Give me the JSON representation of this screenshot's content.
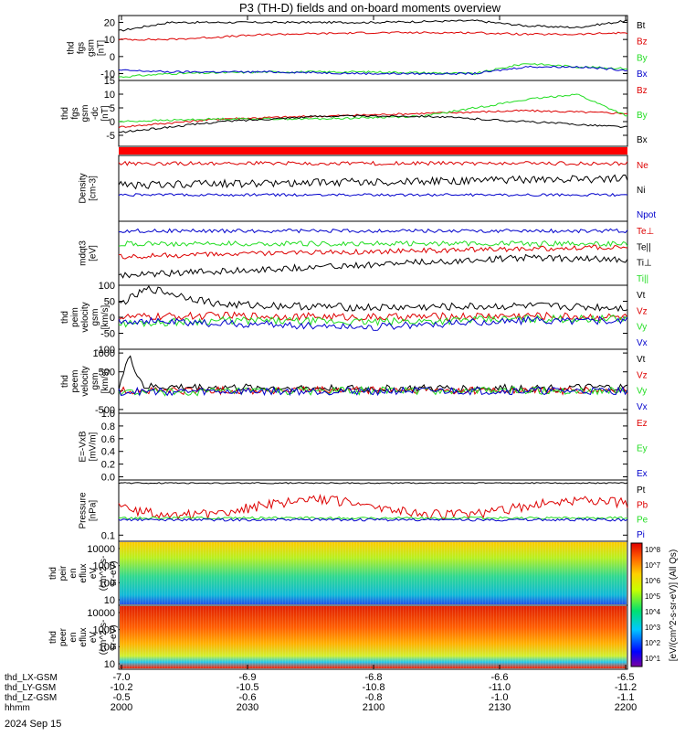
{
  "title": "P3 (TH-D) fields and on-board moments overview",
  "colors": {
    "black": "#000000",
    "red": "#dd0000",
    "green": "#22dd22",
    "blue": "#0000cc"
  },
  "panels": [
    {
      "id": "fgs_gsm",
      "ylabel": [
        "thd",
        "fgs",
        "gsm",
        "[nT]"
      ],
      "ticks": [
        "20",
        "10",
        "0",
        "-10"
      ],
      "tick_values": [
        20,
        10,
        0,
        -10
      ],
      "ylim": [
        -14,
        24
      ],
      "legend": [
        {
          "text": "Bt",
          "color": "black"
        },
        {
          "text": "Bz",
          "color": "red"
        },
        {
          "text": "By",
          "color": "green"
        },
        {
          "text": "Bx",
          "color": "blue"
        }
      ]
    },
    {
      "id": "fgs_gsm_dc",
      "ylabel": [
        "thd",
        "fgs",
        "gsm",
        "-dc",
        "[nT]"
      ],
      "ticks": [
        "15",
        "10",
        "5",
        "0",
        "-5"
      ],
      "tick_values": [
        15,
        10,
        5,
        0,
        -5
      ],
      "ylim": [
        -9,
        15
      ],
      "legend": [
        {
          "text": "Bz",
          "color": "red"
        },
        {
          "text": "By",
          "color": "green"
        },
        {
          "text": "Bx",
          "color": "black"
        }
      ]
    },
    {
      "id": "density",
      "ylabel": [
        "Density",
        "[cm-3]"
      ],
      "ticks": [],
      "tick_values": [],
      "ylim": [
        0,
        1
      ],
      "legend": [
        {
          "text": "Ne",
          "color": "red"
        },
        {
          "text": "Ni",
          "color": "black"
        },
        {
          "text": "Npot",
          "color": "blue"
        }
      ]
    },
    {
      "id": "temperature",
      "ylabel": [
        "mdqt3",
        "[eV]"
      ],
      "ticks": [],
      "tick_values": [],
      "ylim": [
        0,
        1
      ],
      "legend": [
        {
          "text": "Te⊥",
          "color": "red"
        },
        {
          "text": "Te||",
          "color": "black"
        },
        {
          "text": "Ti⊥",
          "color": "black"
        },
        {
          "text": "Ti||",
          "color": "green"
        }
      ]
    },
    {
      "id": "peim_velocity",
      "ylabel": [
        "thd",
        "peim",
        "velocity",
        "gsm",
        "[km/s]"
      ],
      "ticks": [
        "100",
        "50",
        "0",
        "-50",
        "-100"
      ],
      "tick_values": [
        100,
        50,
        0,
        -50,
        -100
      ],
      "ylim": [
        -100,
        100
      ],
      "legend": [
        {
          "text": "Vt",
          "color": "black"
        },
        {
          "text": "Vz",
          "color": "red"
        },
        {
          "text": "Vy",
          "color": "green"
        },
        {
          "text": "Vx",
          "color": "blue"
        }
      ]
    },
    {
      "id": "peem_velocity",
      "ylabel": [
        "thd",
        "peem",
        "velocity",
        "gsm",
        "[km/s]"
      ],
      "ticks": [
        "1000",
        "500",
        "0",
        "-500"
      ],
      "tick_values": [
        1000,
        500,
        0,
        -500
      ],
      "ylim": [
        -600,
        1100
      ],
      "legend": [
        {
          "text": "Vt",
          "color": "black"
        },
        {
          "text": "Vz",
          "color": "red"
        },
        {
          "text": "Vy",
          "color": "green"
        },
        {
          "text": "Vx",
          "color": "blue"
        }
      ]
    },
    {
      "id": "efield",
      "ylabel": [
        "E=-VxB",
        "[mV/m]"
      ],
      "ticks": [
        "1.0",
        "0.8",
        "0.6",
        "0.4",
        "0.2",
        "0.0"
      ],
      "tick_values": [
        1.0,
        0.8,
        0.6,
        0.4,
        0.2,
        0.0
      ],
      "ylim": [
        -0.05,
        1.0
      ],
      "legend": [
        {
          "text": "Ez",
          "color": "red"
        },
        {
          "text": "Ey",
          "color": "green"
        },
        {
          "text": "Ex",
          "color": "blue"
        }
      ]
    },
    {
      "id": "pressure",
      "ylabel": [
        "Pressure",
        "[nPa]"
      ],
      "ticks": [
        "0.1"
      ],
      "tick_values": [
        0.1
      ],
      "ylim": [
        0,
        1
      ],
      "legend": [
        {
          "text": "Pt",
          "color": "black"
        },
        {
          "text": "Pb",
          "color": "red"
        },
        {
          "text": "Pe",
          "color": "green"
        },
        {
          "text": "Pi",
          "color": "blue"
        }
      ]
    },
    {
      "id": "peir_spec",
      "ylabel": [
        "thd",
        "peir",
        "en",
        "eflux",
        "eV",
        "(cm^2-s-",
        "sr-eV)"
      ],
      "ticks": [
        "10000",
        "1000",
        "100",
        "10"
      ],
      "tick_values": [],
      "ylim": [
        0,
        1
      ],
      "legend": []
    },
    {
      "id": "peer_spec",
      "ylabel": [
        "thd",
        "peer",
        "en",
        "eflux",
        "eV",
        "(cm^2-s-",
        "sr-eV)"
      ],
      "ticks": [
        "10000",
        "1000",
        "100",
        "10"
      ],
      "tick_values": [],
      "ylim": [
        0,
        1
      ],
      "legend": []
    }
  ],
  "colorbar": {
    "labels": [
      "10^8",
      "10^7",
      "10^6",
      "10^5",
      "10^4",
      "10^3",
      "10^2",
      "10^1"
    ],
    "title": "[eV/(cm^2-s-sr-eV)] (All Qs)"
  },
  "x_axis": {
    "rows": [
      {
        "label": "thd_LX-GSM",
        "values": [
          "-7.0",
          "-6.9",
          "-6.8",
          "-6.6",
          "-6.5"
        ]
      },
      {
        "label": "thd_LY-GSM",
        "values": [
          "-10.2",
          "-10.5",
          "-10.8",
          "-11.0",
          "-11.2"
        ]
      },
      {
        "label": "thd_LZ-GSM",
        "values": [
          "-0.5",
          "-0.6",
          "-0.8",
          "-1.0",
          "-1.1"
        ]
      },
      {
        "label": "hhmm",
        "values": [
          "2000",
          "2030",
          "2100",
          "2130",
          "2200"
        ]
      }
    ],
    "date": "2024 Sep 15"
  },
  "chart_data": {
    "type": "line",
    "title": "P3 (TH-D) fields and on-board moments overview",
    "x_ticks": [
      "2000",
      "2030",
      "2100",
      "2130",
      "2200"
    ],
    "series": [
      {
        "name": "Bt",
        "panel": "fgs_gsm",
        "x": [
          0,
          0.1,
          0.3,
          0.5,
          0.7,
          0.8,
          0.9,
          1
        ],
        "values": [
          15,
          20,
          20,
          20,
          21,
          18,
          17,
          21
        ]
      },
      {
        "name": "Bz",
        "panel": "fgs_gsm",
        "x": [
          0,
          0.1,
          0.3,
          0.5,
          0.7,
          0.8,
          0.9,
          1
        ],
        "values": [
          10,
          10,
          13,
          14,
          14,
          13,
          13,
          14
        ]
      },
      {
        "name": "By",
        "panel": "fgs_gsm",
        "x": [
          0,
          0.1,
          0.3,
          0.5,
          0.7,
          0.8,
          0.9,
          1
        ],
        "values": [
          -12,
          -10,
          -9,
          -9,
          -10,
          -4,
          -6,
          -7
        ]
      },
      {
        "name": "Bx",
        "panel": "fgs_gsm",
        "x": [
          0,
          0.1,
          0.3,
          0.5,
          0.7,
          0.8,
          0.9,
          1
        ],
        "values": [
          -8,
          -9,
          -9,
          -10,
          -10,
          -6,
          -6,
          -8
        ]
      },
      {
        "name": "Bz",
        "panel": "fgs_gsm_dc",
        "x": [
          0,
          0.2,
          0.4,
          0.6,
          0.8,
          1
        ],
        "values": [
          -2,
          1,
          2,
          3,
          4,
          3
        ]
      },
      {
        "name": "By",
        "panel": "fgs_gsm_dc",
        "x": [
          0,
          0.2,
          0.4,
          0.6,
          0.8,
          0.9,
          1
        ],
        "values": [
          0,
          1,
          1,
          2,
          8,
          10,
          2
        ]
      },
      {
        "name": "Bx",
        "panel": "fgs_gsm_dc",
        "x": [
          0,
          0.2,
          0.4,
          0.6,
          0.8,
          1
        ],
        "values": [
          -4,
          0,
          2,
          2,
          0,
          -2
        ]
      },
      {
        "name": "Vt",
        "panel": "peim_velocity",
        "x": [
          0,
          0.06,
          0.2,
          0.5,
          0.8,
          1
        ],
        "values": [
          40,
          90,
          40,
          30,
          35,
          30
        ]
      },
      {
        "name": "Vz",
        "panel": "peim_velocity",
        "x": [
          0,
          0.2,
          0.5,
          0.8,
          1
        ],
        "values": [
          0,
          5,
          0,
          5,
          0
        ]
      },
      {
        "name": "Vy",
        "panel": "peim_velocity",
        "x": [
          0,
          0.2,
          0.5,
          0.8,
          1
        ],
        "values": [
          -20,
          -10,
          -15,
          -5,
          -5
        ]
      },
      {
        "name": "Vx",
        "panel": "peim_velocity",
        "x": [
          0,
          0.2,
          0.5,
          0.8,
          1
        ],
        "values": [
          -10,
          -20,
          -30,
          -10,
          -10
        ]
      },
      {
        "name": "Vt",
        "panel": "peem_velocity",
        "x": [
          0,
          0.02,
          0.05,
          0.5,
          1
        ],
        "values": [
          100,
          900,
          100,
          50,
          80
        ]
      },
      {
        "name": "Vz",
        "panel": "peem_velocity",
        "x": [
          0,
          0.5,
          1
        ],
        "values": [
          0,
          10,
          0
        ]
      },
      {
        "name": "Vy",
        "panel": "peem_velocity",
        "x": [
          0,
          0.5,
          1
        ],
        "values": [
          -50,
          0,
          0
        ]
      },
      {
        "name": "Vx",
        "panel": "peem_velocity",
        "x": [
          0,
          0.5,
          1
        ],
        "values": [
          -30,
          -10,
          -10
        ]
      }
    ]
  }
}
